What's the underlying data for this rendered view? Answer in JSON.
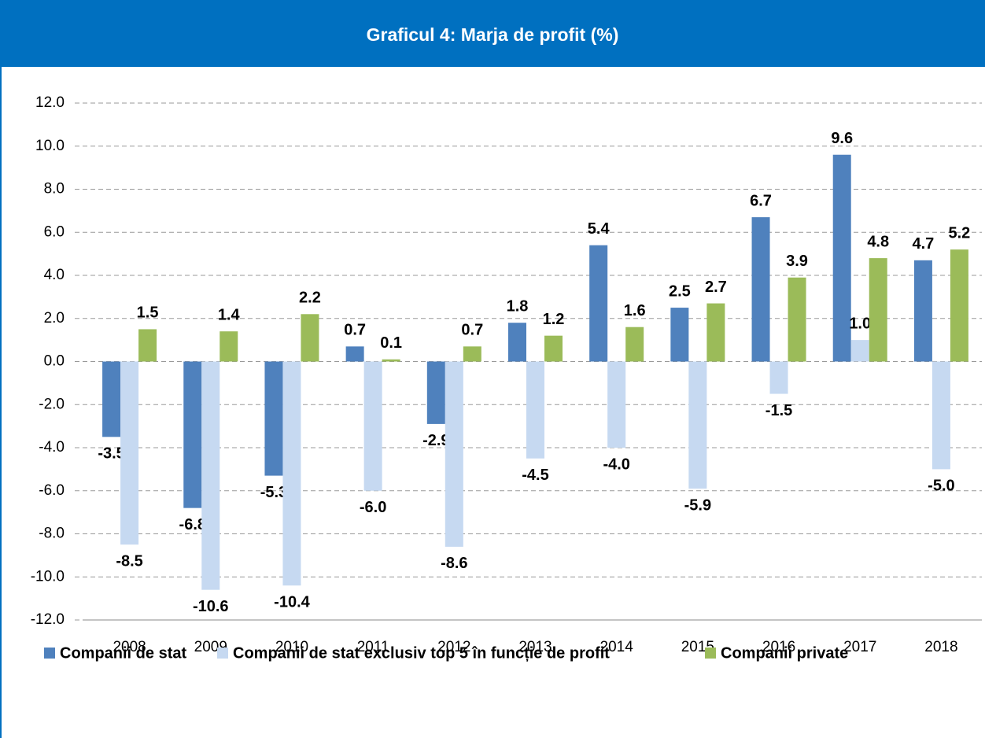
{
  "chart_data": {
    "type": "bar",
    "title": "Graficul 4: Marja de profit (%)",
    "categories": [
      "2008",
      "2009",
      "2010",
      "2011",
      "2012",
      "2013",
      "2014",
      "2015",
      "2016",
      "2017",
      "2018"
    ],
    "series": [
      {
        "name": "Companii de stat",
        "color": "#4f81bd",
        "values": [
          -3.5,
          -6.8,
          -5.3,
          0.7,
          -2.9,
          1.8,
          5.4,
          2.5,
          6.7,
          9.6,
          4.7
        ],
        "value_labels": [
          "-3.5",
          "-6.8",
          "-5.3",
          "0.7",
          "-2.9",
          "1.8",
          "5.4",
          "2.5",
          "6.7",
          "9.6",
          "4.7"
        ]
      },
      {
        "name": "Companii de stat exclusiv top 5 în funcție de profit",
        "color": "#c6d9f1",
        "values": [
          -8.5,
          -10.6,
          -10.4,
          -6.0,
          -8.6,
          -4.5,
          -4.0,
          -5.9,
          -1.5,
          1.0,
          -5.0
        ],
        "value_labels": [
          "-8.5",
          "-10.6",
          "-10.4",
          "-6.0",
          "-8.6",
          "-4.5",
          "-4.0",
          "-5.9",
          "-1.5",
          "1.0",
          "-5.0"
        ]
      },
      {
        "name": "Companii private",
        "color": "#9bbb59",
        "values": [
          1.5,
          1.4,
          2.2,
          0.1,
          0.7,
          1.2,
          1.6,
          2.7,
          3.9,
          4.8,
          5.2
        ],
        "value_labels": [
          "1.5",
          "1.4",
          "2.2",
          "0.1",
          "0.7",
          "1.2",
          "1.6",
          "2.7",
          "3.9",
          "4.8",
          "5.2"
        ]
      }
    ],
    "ylim": [
      -12,
      12
    ],
    "yticks": [
      {
        "value": -12,
        "label": "-12.0"
      },
      {
        "value": -10,
        "label": "-10.0"
      },
      {
        "value": -8,
        "label": "-8.0"
      },
      {
        "value": -6,
        "label": "-6.0"
      },
      {
        "value": -4,
        "label": "-4.0"
      },
      {
        "value": -2,
        "label": "-2.0"
      },
      {
        "value": 0,
        "label": "0.0"
      },
      {
        "value": 2,
        "label": "2.0"
      },
      {
        "value": 4,
        "label": "4.0"
      },
      {
        "value": 6,
        "label": "6.0"
      },
      {
        "value": 8,
        "label": "8.0"
      },
      {
        "value": 10,
        "label": "10.0"
      },
      {
        "value": 12,
        "label": "12.0"
      }
    ],
    "grid": true,
    "legend": "bottom"
  }
}
